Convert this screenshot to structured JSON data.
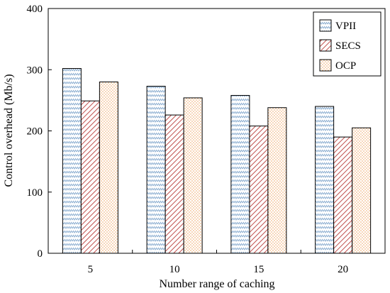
{
  "chart_data": {
    "type": "bar",
    "categories": [
      "5",
      "10",
      "15",
      "20"
    ],
    "series": [
      {
        "name": "VPII",
        "values": [
          302,
          273,
          258,
          240
        ],
        "color": "#9bbbd9",
        "pattern": "zigzag"
      },
      {
        "name": "SECS",
        "values": [
          249,
          226,
          208,
          190
        ],
        "color": "#c0504d",
        "pattern": "diagonal"
      },
      {
        "name": "OCP",
        "values": [
          280,
          254,
          238,
          205
        ],
        "color": "#f0a868",
        "pattern": "dots"
      }
    ],
    "xlabel": "Number range of caching",
    "ylabel": "Control overhead (Mb/s)",
    "ylim": [
      0,
      400
    ],
    "yticks": [
      "0",
      "100",
      "200",
      "300",
      "400"
    ],
    "grid": false,
    "legend_position": "top-right"
  }
}
